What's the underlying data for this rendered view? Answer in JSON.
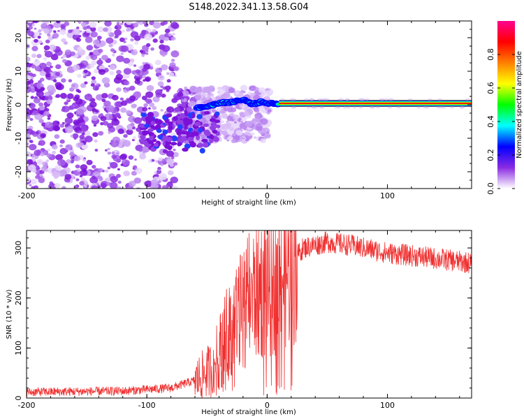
{
  "title": "S148.2022.341.13.58.G04",
  "chart_data": [
    {
      "type": "heatmap",
      "name": "spectrogram",
      "xlabel": "Height of straight line (km)",
      "ylabel": "Frequency (Hz)",
      "xlim": [
        -200,
        170
      ],
      "ylim": [
        -25,
        25
      ],
      "xticks": [
        -200,
        -100,
        0,
        100
      ],
      "yticks": [
        -20,
        -10,
        0,
        10,
        20
      ],
      "colorbar": {
        "label": "Normalized spectral amplitude",
        "range": [
          0,
          1
        ],
        "ticks": [
          "0.0",
          "0.2",
          "0.4",
          "0.6",
          "0.8"
        ],
        "colors": [
          "#ffffff",
          "#8a2be2",
          "#0000ff",
          "#00ffff",
          "#00ff00",
          "#ffff00",
          "#ff8000",
          "#ff0000",
          "#ff0090"
        ]
      },
      "tone": {
        "frequency_hz": 0.4,
        "wander_start_km": -58,
        "stable_start_km": 10,
        "wander_points": [
          [
            -58,
            -1
          ],
          [
            -50,
            -0.5
          ],
          [
            -40,
            0.5
          ],
          [
            -30,
            0.8
          ],
          [
            -20,
            1.5
          ],
          [
            -12,
            0.2
          ],
          [
            -5,
            0.8
          ],
          [
            5,
            0.3
          ],
          [
            10,
            0.4
          ]
        ]
      },
      "noise_region_km": [
        -200,
        -35
      ]
    },
    {
      "type": "line",
      "name": "snr",
      "xlabel": "Height of straight line (km)",
      "ylabel": "SNR (10 * v/v)",
      "xlim": [
        -200,
        170
      ],
      "ylim": [
        0,
        335
      ],
      "xticks": [
        -200,
        -100,
        0,
        100
      ],
      "yticks": [
        0,
        100,
        200,
        300
      ],
      "color": "#f03030",
      "profile": [
        [
          -200,
          12
        ],
        [
          -120,
          14
        ],
        [
          -80,
          20
        ],
        [
          -60,
          35
        ],
        [
          -45,
          60
        ],
        [
          -35,
          120
        ],
        [
          -25,
          160
        ],
        [
          -15,
          200
        ],
        [
          -5,
          220
        ],
        [
          10,
          240
        ],
        [
          20,
          270
        ],
        [
          30,
          300
        ],
        [
          50,
          312
        ],
        [
          70,
          305
        ],
        [
          100,
          290
        ],
        [
          130,
          282
        ],
        [
          170,
          270
        ]
      ]
    }
  ]
}
